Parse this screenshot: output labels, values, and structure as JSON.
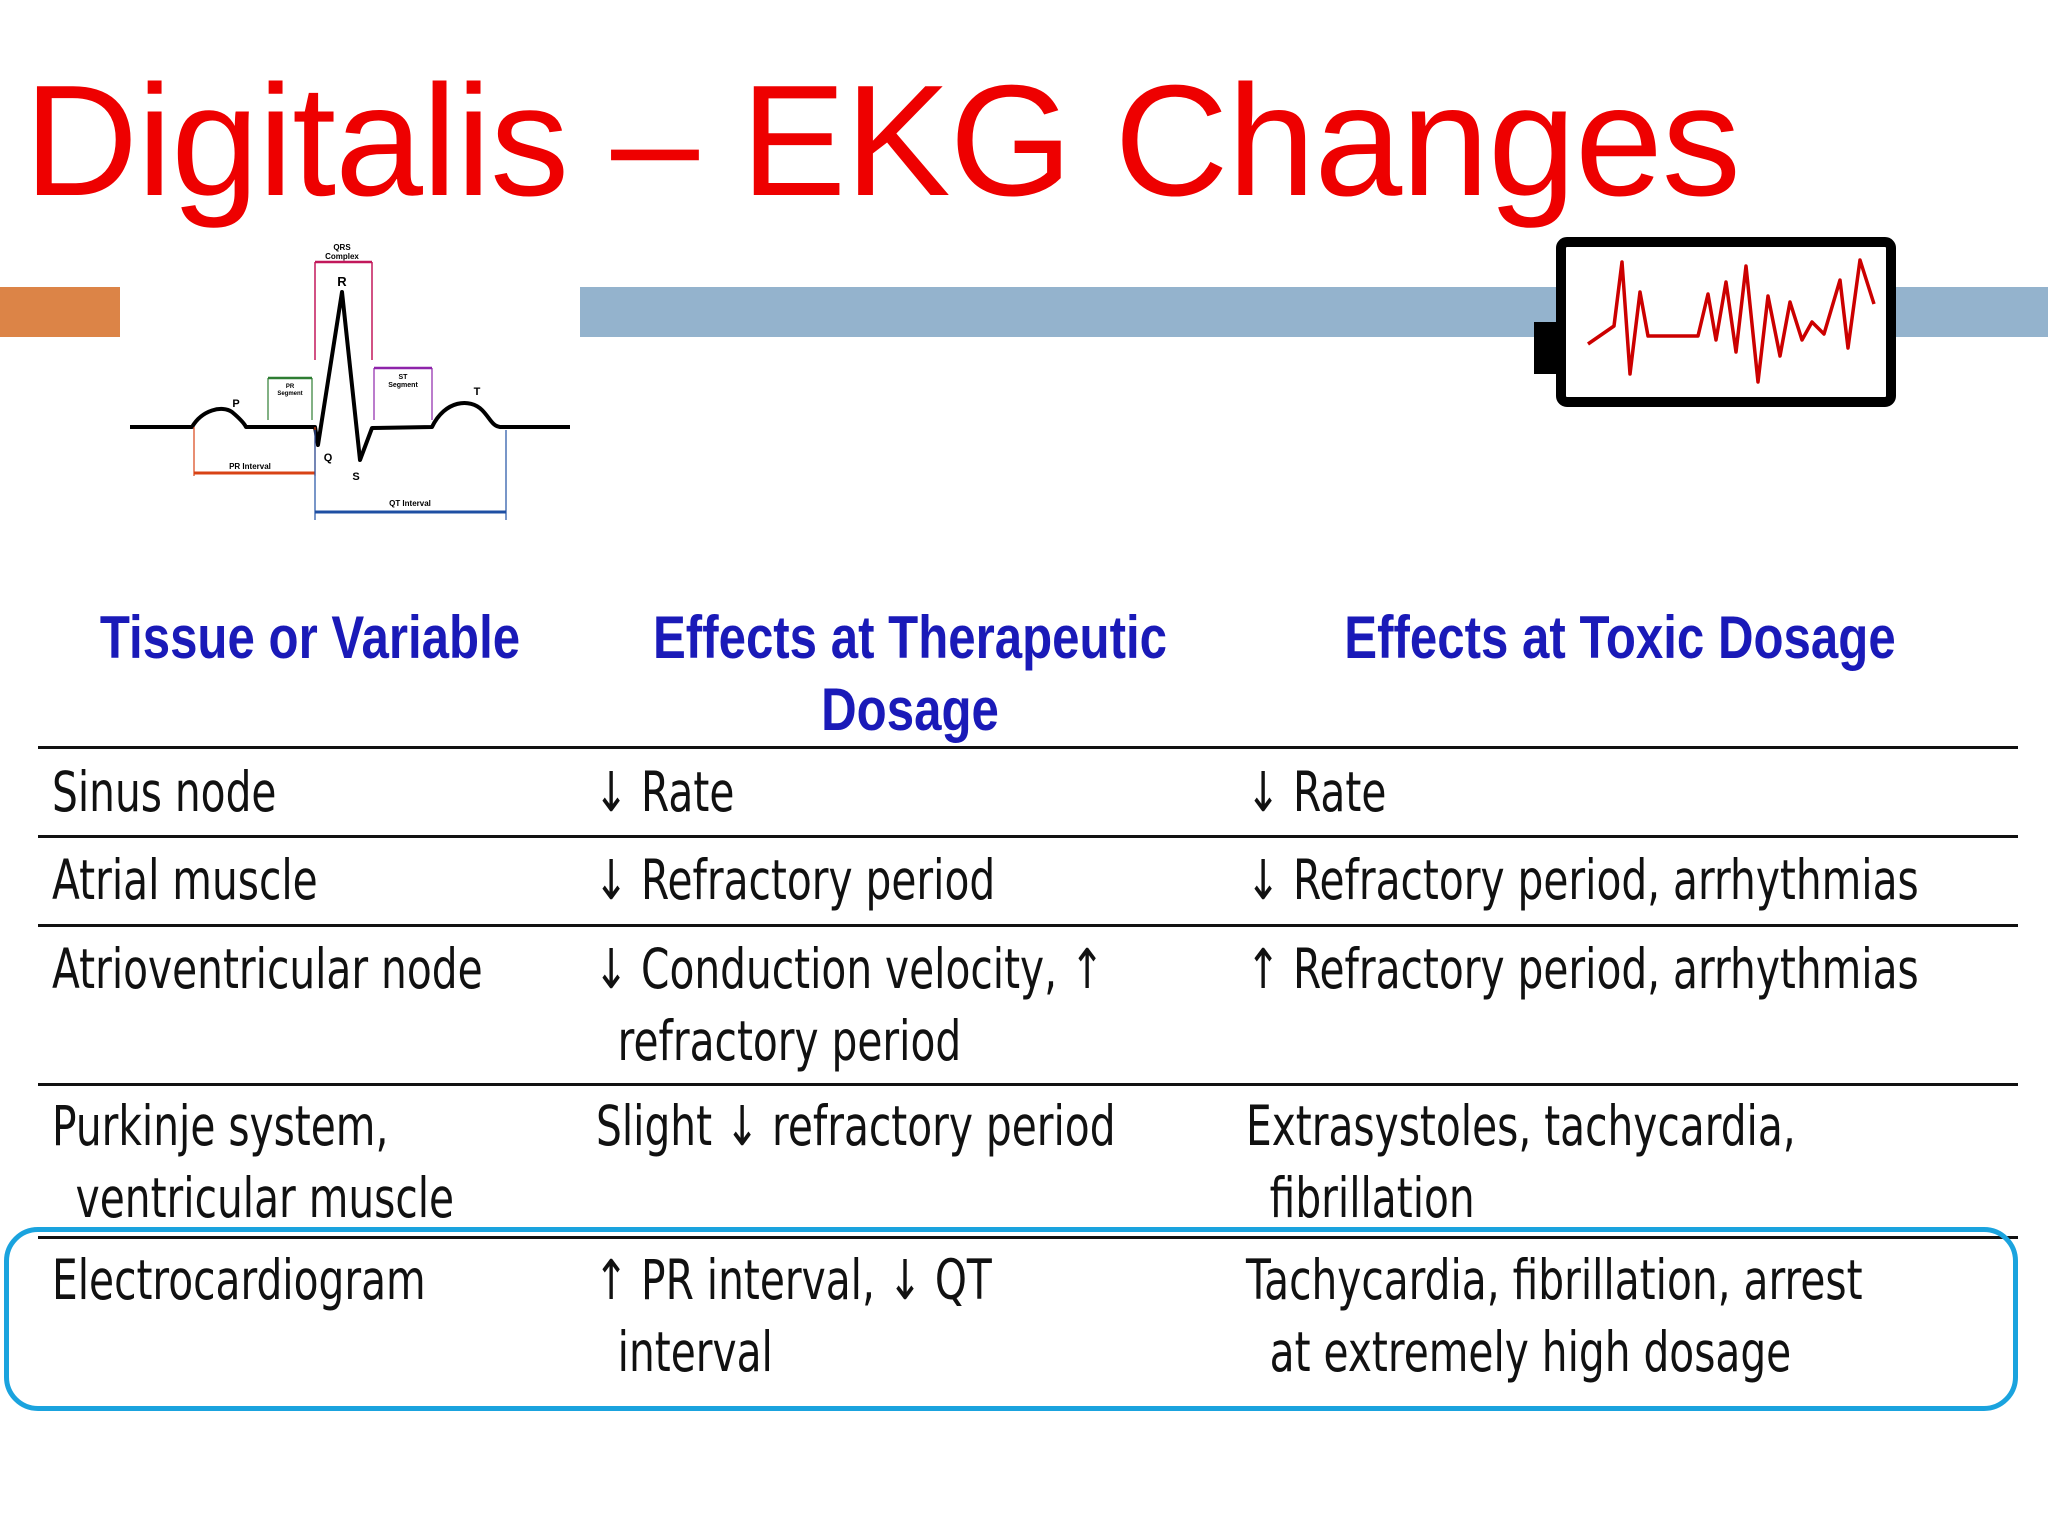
{
  "slide": {
    "title": "Digitalis – EKG Changes"
  },
  "colors": {
    "title": "#ee0000",
    "header_text": "#1a1ab8",
    "accent_orange": "#dc8447",
    "accent_blue_bar": "#94b3cd",
    "highlight_border": "#1aa3de",
    "ecg_trace": "#cc0000"
  },
  "ecg_diagram": {
    "qrs_label_1": "QRS",
    "qrs_label_2": "Complex",
    "r": "R",
    "p": "P",
    "q": "Q",
    "s": "S",
    "t": "T",
    "pr_segment_1": "PR",
    "pr_segment_2": "Segment",
    "st_segment_1": "ST",
    "st_segment_2": "Segment",
    "pr_interval": "PR Interval",
    "qt_interval": "QT Interval"
  },
  "table": {
    "headers": {
      "col1": "Tissue or Variable",
      "col2_line1": "Effects at Therapeutic",
      "col2_line2": "Dosage",
      "col3": "Effects at Toxic Dosage"
    },
    "rows": [
      {
        "tissue": "Sinus node",
        "therapeutic": "↓ Rate",
        "toxic": "↓ Rate"
      },
      {
        "tissue": "Atrial muscle",
        "therapeutic": "↓ Refractory period",
        "toxic": "↓ Refractory period, arrhythmias"
      },
      {
        "tissue": "Atrioventricular node",
        "therapeutic_line1": "↓ Conduction velocity, ↑",
        "therapeutic_line2": "refractory period",
        "toxic": "↑ Refractory period, arrhythmias"
      },
      {
        "tissue_line1": "Purkinje system,",
        "tissue_line2": "ventricular muscle",
        "therapeutic": "Slight ↓ refractory period",
        "toxic_line1": "Extrasystoles, tachycardia,",
        "toxic_line2": "fibrillation"
      },
      {
        "tissue": "Electrocardiogram",
        "therapeutic_line1": "↑ PR interval, ↓ QT",
        "therapeutic_line2": "interval",
        "toxic_line1": "Tachycardia, fibrillation, arrest",
        "toxic_line2": "at extremely high dosage"
      }
    ]
  }
}
